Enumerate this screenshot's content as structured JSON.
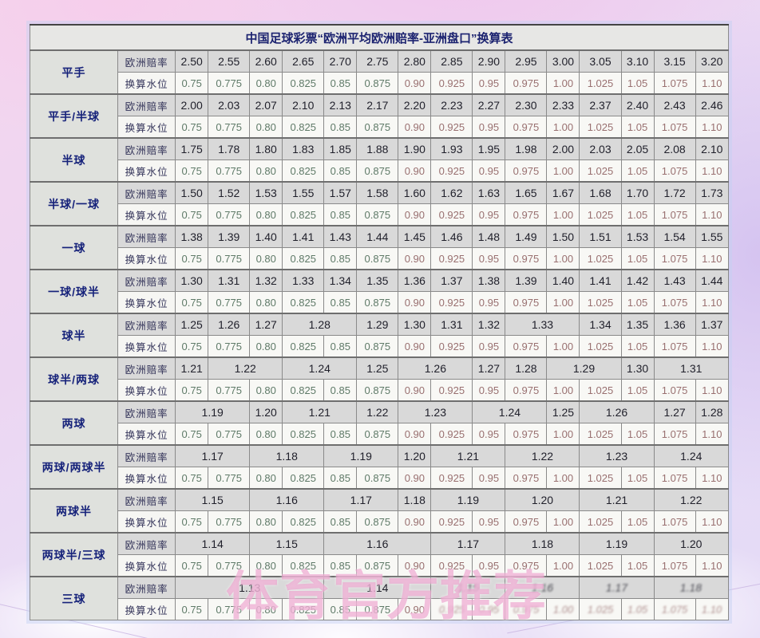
{
  "title": "中国足球彩票“欧洲平均欧洲赔率-亚洲盘口”换算表",
  "row_headers": {
    "odds": "欧洲赔率",
    "water": "换算水位"
  },
  "water_levels": [
    "0.75",
    "0.775",
    "0.80",
    "0.825",
    "0.85",
    "0.875",
    "0.90",
    "0.925",
    "0.95",
    "0.975",
    "1.00",
    "1.025",
    "1.05",
    "1.075",
    "1.10"
  ],
  "watermark": "体育官方推荐",
  "colors": {
    "odds_cell_bg": "#d9d9d9",
    "water_cell_bg": "#f8f8f5",
    "label_cell_bg": "#dfe1dd",
    "title_bg": "#e7e7e5",
    "navy_text": "#16227a",
    "odds_text": "#1f1f2a",
    "water_text_low": "#5f7a68",
    "water_text_high": "#997070",
    "watermark_pink": "#eb94c6",
    "wallpaper_pink": "#f4d6ee",
    "wallpaper_lavender": "#e4daf6"
  },
  "groups": [
    {
      "label": "平手",
      "odds": [
        "2.50",
        "2.55",
        "2.60",
        "2.65",
        "2.70",
        "2.75",
        "2.80",
        "2.85",
        "2.90",
        "2.95",
        "3.00",
        "3.05",
        "3.10",
        "3.15",
        "3.20"
      ]
    },
    {
      "label": "平手/半球",
      "odds": [
        "2.00",
        "2.03",
        "2.07",
        "2.10",
        "2.13",
        "2.17",
        "2.20",
        "2.23",
        "2.27",
        "2.30",
        "2.33",
        "2.37",
        "2.40",
        "2.43",
        "2.46"
      ]
    },
    {
      "label": "半球",
      "odds": [
        "1.75",
        "1.78",
        "1.80",
        "1.83",
        "1.85",
        "1.88",
        "1.90",
        "1.93",
        "1.95",
        "1.98",
        "2.00",
        "2.03",
        "2.05",
        "2.08",
        "2.10"
      ]
    },
    {
      "label": "半球/一球",
      "odds": [
        "1.50",
        "1.52",
        "1.53",
        "1.55",
        "1.57",
        "1.58",
        "1.60",
        "1.62",
        "1.63",
        "1.65",
        "1.67",
        "1.68",
        "1.70",
        "1.72",
        "1.73"
      ]
    },
    {
      "label": "一球",
      "odds": [
        "1.38",
        "1.39",
        "1.40",
        "1.41",
        "1.43",
        "1.44",
        "1.45",
        "1.46",
        "1.48",
        "1.49",
        "1.50",
        "1.51",
        "1.53",
        "1.54",
        "1.55"
      ]
    },
    {
      "label": "一球/球半",
      "odds": [
        "1.30",
        "1.31",
        "1.32",
        "1.33",
        "1.34",
        "1.35",
        "1.36",
        "1.37",
        "1.38",
        "1.39",
        "1.40",
        "1.41",
        "1.42",
        "1.43",
        "1.44"
      ]
    },
    {
      "label": "球半",
      "odds": [
        {
          "v": "1.25",
          "span": 1
        },
        {
          "v": "1.26",
          "span": 1
        },
        {
          "v": "1.27",
          "span": 1
        },
        {
          "v": "1.28",
          "span": 2
        },
        {
          "v": "1.29",
          "span": 1
        },
        {
          "v": "1.30",
          "span": 1
        },
        {
          "v": "1.31",
          "span": 1
        },
        {
          "v": "1.32",
          "span": 1
        },
        {
          "v": "1.33",
          "span": 2
        },
        {
          "v": "1.34",
          "span": 1
        },
        {
          "v": "1.35",
          "span": 1
        },
        {
          "v": "1.36",
          "span": 1
        },
        {
          "v": "1.37",
          "span": 1
        }
      ]
    },
    {
      "label": "球半/两球",
      "odds": [
        {
          "v": "1.21",
          "span": 1
        },
        {
          "v": "1.22",
          "span": 2
        },
        {
          "v": "1.24",
          "span": 2
        },
        {
          "v": "1.25",
          "span": 1
        },
        {
          "v": "1.26",
          "span": 2
        },
        {
          "v": "1.27",
          "span": 1
        },
        {
          "v": "1.28",
          "span": 1
        },
        {
          "v": "1.29",
          "span": 2
        },
        {
          "v": "1.30",
          "span": 1
        },
        {
          "v": "1.31",
          "span": 2
        }
      ]
    },
    {
      "label": "两球",
      "odds": [
        {
          "v": "1.19",
          "span": 2
        },
        {
          "v": "1.20",
          "span": 1
        },
        {
          "v": "1.21",
          "span": 2
        },
        {
          "v": "1.22",
          "span": 1
        },
        {
          "v": "1.23",
          "span": 2
        },
        {
          "v": "1.24",
          "span": 2
        },
        {
          "v": "1.25",
          "span": 1
        },
        {
          "v": "1.26",
          "span": 2
        },
        {
          "v": "1.27",
          "span": 1
        },
        {
          "v": "1.28",
          "span": 1
        }
      ]
    },
    {
      "label": "两球/两球半",
      "odds": [
        {
          "v": "1.17",
          "span": 2
        },
        {
          "v": "1.18",
          "span": 2
        },
        {
          "v": "1.19",
          "span": 2
        },
        {
          "v": "1.20",
          "span": 1
        },
        {
          "v": "1.21",
          "span": 2
        },
        {
          "v": "1.22",
          "span": 2
        },
        {
          "v": "1.23",
          "span": 2
        },
        {
          "v": "1.24",
          "span": 2
        }
      ]
    },
    {
      "label": "两球半",
      "odds": [
        {
          "v": "1.15",
          "span": 2
        },
        {
          "v": "1.16",
          "span": 2
        },
        {
          "v": "1.17",
          "span": 2
        },
        {
          "v": "1.18",
          "span": 1
        },
        {
          "v": "1.19",
          "span": 2
        },
        {
          "v": "1.20",
          "span": 2
        },
        {
          "v": "1.21",
          "span": 2
        },
        {
          "v": "1.22",
          "span": 2
        }
      ]
    },
    {
      "label": "两球半/三球",
      "odds": [
        {
          "v": "1.14",
          "span": 2
        },
        {
          "v": "1.15",
          "span": 2
        },
        {
          "v": "1.16",
          "span": 3
        },
        {
          "v": "1.17",
          "span": 2
        },
        {
          "v": "1.18",
          "span": 2
        },
        {
          "v": "1.19",
          "span": 2
        },
        {
          "v": "1.20",
          "span": 2
        }
      ]
    },
    {
      "label": "三球",
      "odds": [
        {
          "v": "1.13",
          "span": 4
        },
        {
          "v": "1.14",
          "span": 3
        },
        {
          "v": "1.15",
          "span": 2
        },
        {
          "v": "1.16",
          "span": 2
        },
        {
          "v": "1.17",
          "span": 2
        },
        {
          "v": "1.18",
          "span": 2
        }
      ],
      "corrupt_odds_from": 2,
      "corrupt_water_from": 7
    }
  ]
}
